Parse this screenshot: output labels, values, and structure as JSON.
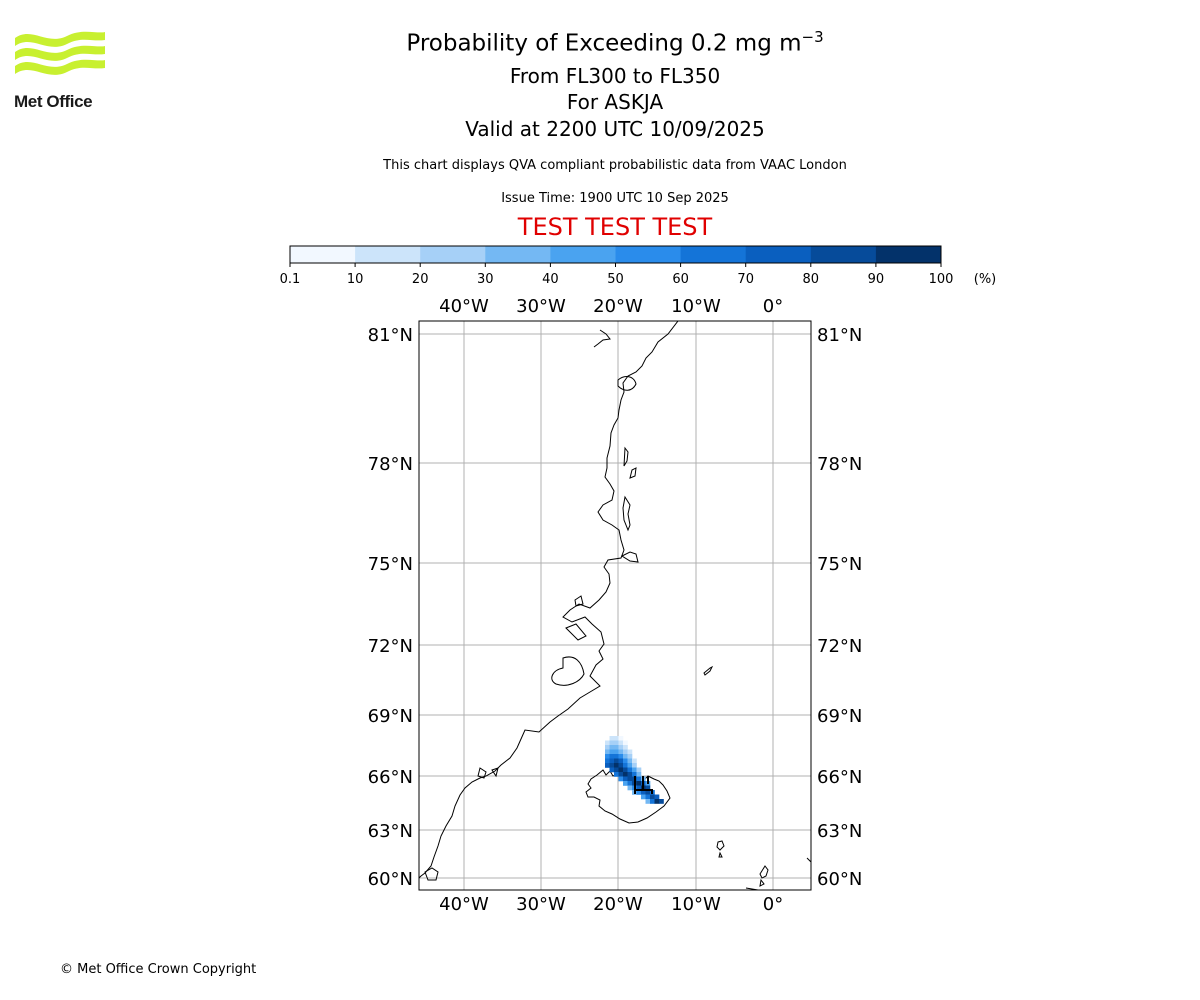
{
  "header": {
    "logo_text": "Met Office",
    "title_prefix": "Probability of Exceeding 0.2 mg m",
    "title_superscript": "−3",
    "subtitle_levels": "From FL300 to FL350",
    "subtitle_volcano": "For ASKJA",
    "valid_time": "Valid at 2200 UTC 10/09/2025",
    "description": "This chart displays QVA compliant probabilistic data from VAAC London",
    "issue_time": "Issue Time: 1900 UTC 10 Sep 2025",
    "test_banner": "TEST TEST TEST"
  },
  "colorbar": {
    "ticks": [
      "0.1",
      "10",
      "20",
      "30",
      "40",
      "50",
      "60",
      "70",
      "80",
      "90",
      "100"
    ],
    "unit": "(%)",
    "colors": [
      "#f2f8ff",
      "#cce4fa",
      "#a6d0f7",
      "#74b8f3",
      "#4aa3f0",
      "#2a8ceb",
      "#1474d8",
      "#0a5fbf",
      "#064b9a",
      "#03326a"
    ]
  },
  "map": {
    "lon_labels": [
      "40°W",
      "30°W",
      "20°W",
      "10°W",
      "0°"
    ],
    "lat_labels": [
      "81°N",
      "78°N",
      "75°N",
      "72°N",
      "69°N",
      "66°N",
      "63°N",
      "60°N"
    ],
    "lon_values": [
      -40,
      -30,
      -20,
      -10,
      0
    ],
    "lat_values": [
      81,
      78,
      75,
      72,
      69,
      66,
      63,
      60
    ],
    "probability_field": {
      "region": "North of Iceland, extending from the Askja area northwest",
      "max_percent": 100
    },
    "features": [
      "Greenland east coast",
      "Iceland",
      "Jan Mayen",
      "Faroe Islands",
      "Shetland"
    ]
  },
  "footer": {
    "copyright": "© Met Office Crown Copyright"
  }
}
